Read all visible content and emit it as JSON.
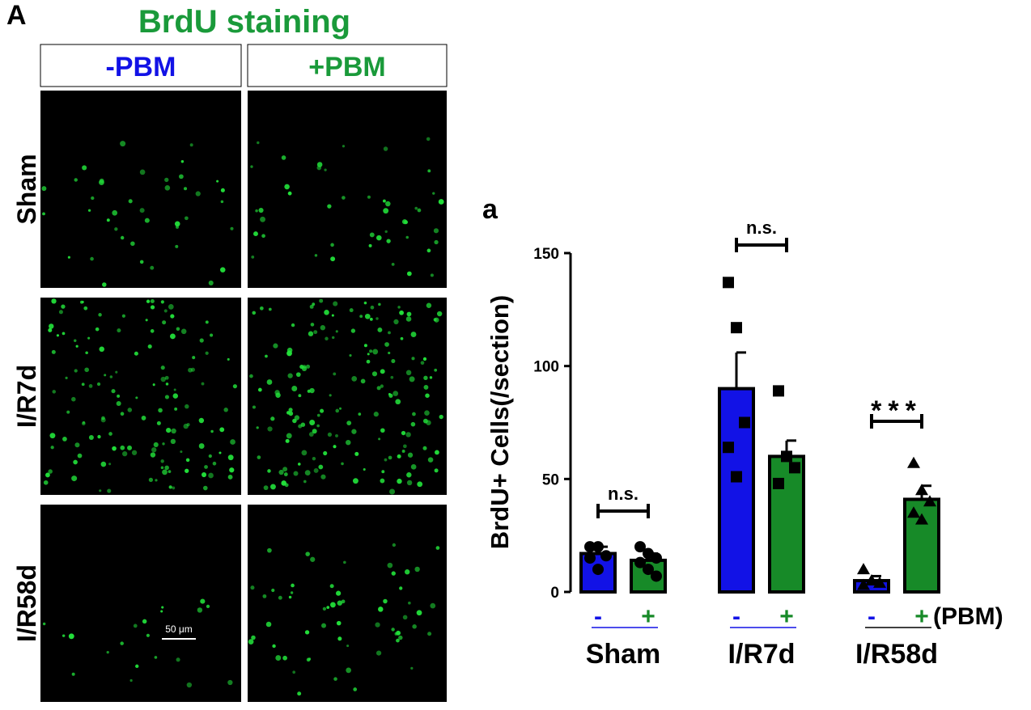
{
  "figure": {
    "panel_label": "A",
    "title": "BrdU staining",
    "columns": [
      "-PBM",
      "+PBM"
    ],
    "rows": [
      "Sham",
      "I/R7d",
      "I/R58d"
    ],
    "scale_bar": "50 μm"
  },
  "chart_data": {
    "type": "bar",
    "panel_label": "a",
    "ylabel": "BrdU+ Cells(/section)",
    "categories": [
      "Sham",
      "I/R7d",
      "I/R58d"
    ],
    "series": [
      {
        "name": "-",
        "color": "#1212e6",
        "values": [
          17,
          90,
          5
        ],
        "errors": [
          3,
          16,
          2
        ],
        "points": [
          [
            20,
            20,
            16,
            15,
            10
          ],
          [
            137,
            117,
            75,
            64,
            51
          ],
          [
            10,
            5,
            4,
            3
          ]
        ]
      },
      {
        "name": "+",
        "color": "#178a28",
        "values": [
          14,
          60,
          41
        ],
        "errors": [
          3,
          7,
          6
        ],
        "points": [
          [
            20,
            17,
            15,
            13,
            10,
            7
          ],
          [
            89,
            60,
            55,
            48
          ],
          [
            57,
            45,
            40,
            35,
            32
          ]
        ]
      }
    ],
    "markers": [
      "circle",
      "square",
      "triangle"
    ],
    "significance": [
      "n.s.",
      "n.s.",
      "***"
    ],
    "x_suffix": "(PBM)",
    "ylim": [
      0,
      150
    ],
    "yticks": [
      0,
      50,
      100,
      150
    ]
  }
}
